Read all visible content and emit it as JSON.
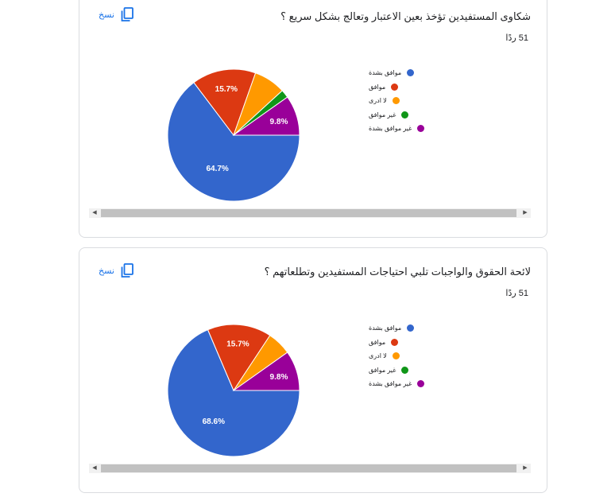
{
  "colors": {
    "very_agree": "#3366cc",
    "agree": "#dc3912",
    "dont_know": "#ff9900",
    "disagree": "#109618",
    "very_disagree": "#990099",
    "accent": "#1a73e8"
  },
  "questions": [
    {
      "title": "شكاوى المستفيدين تؤخذ بعين الاعتبار وتعالج بشكل سريع ؟",
      "responses": "51 ردًا",
      "copy_label": "نسخ",
      "copy_icon": "copy-icon",
      "legend": [
        "موافق بشدة",
        "موافق",
        "لا ادرى",
        "غير موافق",
        "غير موافق بشدة"
      ]
    },
    {
      "title": "لائحة الحقوق والواجبات تلبي احتياجات المستفيدين وتطلعاتهم ؟",
      "responses": "51 ردًا",
      "copy_label": "نسخ",
      "copy_icon": "copy-icon",
      "legend": [
        "موافق بشدة",
        "موافق",
        "لا ادرى",
        "غير موافق",
        "غير موافق بشدة"
      ]
    }
  ],
  "chart_data": [
    {
      "type": "pie",
      "categories": [
        "موافق بشدة",
        "موافق",
        "لا ادرى",
        "غير موافق",
        "غير موافق بشدة"
      ],
      "values": [
        64.7,
        15.7,
        7.8,
        2.0,
        9.8
      ],
      "data_labels": [
        "64.7%",
        "15.7%",
        "",
        "",
        "9.8%"
      ],
      "legend_position": "right"
    },
    {
      "type": "pie",
      "categories": [
        "موافق بشدة",
        "موافق",
        "لا ادرى",
        "غير موافق",
        "غير موافق بشدة"
      ],
      "values": [
        68.6,
        15.7,
        5.9,
        0,
        9.8
      ],
      "data_labels": [
        "68.6%",
        "15.7%",
        "",
        "",
        "9.8%"
      ],
      "legend_position": "right"
    }
  ]
}
